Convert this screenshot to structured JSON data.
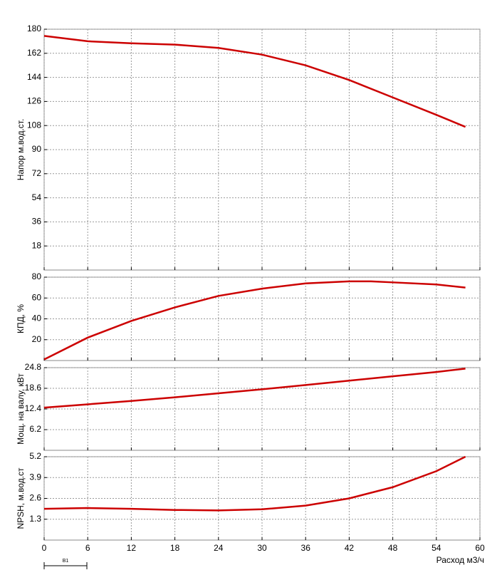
{
  "chart_data": [
    {
      "type": "line",
      "y_label": "Напор м.вод.ст.",
      "xlim": [
        0,
        60
      ],
      "xticks": [
        0,
        6,
        12,
        18,
        24,
        30,
        36,
        42,
        48,
        54,
        60
      ],
      "ylim": [
        0,
        180
      ],
      "yticks": [
        18,
        36,
        54,
        72,
        90,
        108,
        126,
        144,
        162,
        180
      ],
      "grid": true,
      "series": [
        {
          "color": "#cc0000",
          "x": [
            0,
            6,
            12,
            18,
            24,
            30,
            36,
            42,
            48,
            54,
            58
          ],
          "values": [
            175,
            171,
            169.5,
            168.5,
            166,
            161,
            153,
            142,
            129,
            116,
            107
          ]
        }
      ]
    },
    {
      "type": "line",
      "y_label": "КПД, %",
      "xlim": [
        0,
        60
      ],
      "xticks": [
        0,
        6,
        12,
        18,
        24,
        30,
        36,
        42,
        48,
        54,
        60
      ],
      "ylim": [
        0,
        80
      ],
      "yticks": [
        20,
        40,
        60,
        80
      ],
      "grid": true,
      "series": [
        {
          "color": "#cc0000",
          "x": [
            0,
            6,
            12,
            18,
            24,
            30,
            36,
            42,
            45,
            48,
            54,
            58
          ],
          "values": [
            1,
            22,
            38,
            51,
            62,
            69,
            74,
            76,
            76,
            75,
            73,
            70
          ]
        }
      ]
    },
    {
      "type": "line",
      "y_label": "Мощ. на валу, кВт",
      "xlim": [
        0,
        60
      ],
      "xticks": [
        0,
        6,
        12,
        18,
        24,
        30,
        36,
        42,
        48,
        54,
        60
      ],
      "ylim": [
        0,
        24.8
      ],
      "yticks": [
        6.2,
        12.4,
        18.6,
        24.8
      ],
      "grid": true,
      "series": [
        {
          "color": "#cc0000",
          "x": [
            0,
            6,
            12,
            18,
            24,
            30,
            36,
            42,
            48,
            54,
            58
          ],
          "values": [
            12.8,
            13.8,
            14.8,
            15.9,
            17.1,
            18.3,
            19.6,
            20.9,
            22.2,
            23.5,
            24.5
          ]
        }
      ]
    },
    {
      "type": "line",
      "y_label": "NPSH, м.вод.ст",
      "x_label": "Расход м3/ч",
      "show_x_labels": true,
      "xlim": [
        0,
        60
      ],
      "xticks": [
        0,
        6,
        12,
        18,
        24,
        30,
        36,
        42,
        48,
        54,
        60
      ],
      "ylim": [
        0,
        5.2
      ],
      "yticks": [
        1.3,
        2.6,
        3.9,
        5.2
      ],
      "grid": true,
      "series": [
        {
          "color": "#cc0000",
          "x": [
            0,
            6,
            12,
            18,
            24,
            30,
            36,
            42,
            48,
            54,
            58
          ],
          "values": [
            1.95,
            2.0,
            1.95,
            1.88,
            1.85,
            1.92,
            2.15,
            2.6,
            3.3,
            4.3,
            5.2
          ]
        }
      ]
    }
  ],
  "footer": {
    "label": "B1"
  }
}
